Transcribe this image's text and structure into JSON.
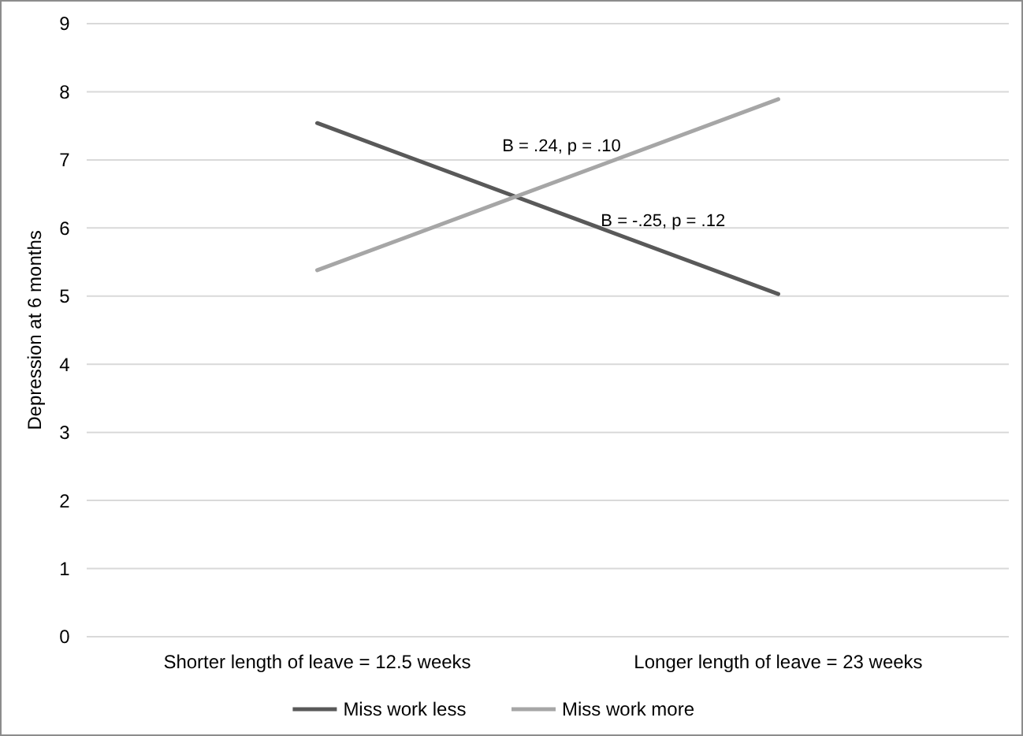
{
  "chart_data": {
    "type": "line",
    "ylabel": "Depression at 6 months",
    "categories": [
      "Shorter length of leave = 12.5 weeks",
      "Longer length of leave = 23 weeks"
    ],
    "series": [
      {
        "name": "Miss work less",
        "color": "#595959",
        "values": [
          7.54,
          5.03
        ]
      },
      {
        "name": "Miss work more",
        "color": "#a6a6a6",
        "values": [
          5.38,
          7.89
        ]
      }
    ],
    "ylim": [
      0,
      9
    ],
    "yticks": [
      0,
      1,
      2,
      3,
      4,
      5,
      6,
      7,
      8,
      9
    ],
    "grid": "y",
    "legend": "bottom",
    "marker": "none",
    "line_style": "solid",
    "annotations": [
      "B = .24, p = .10",
      "B = -.25, p = .12"
    ]
  }
}
